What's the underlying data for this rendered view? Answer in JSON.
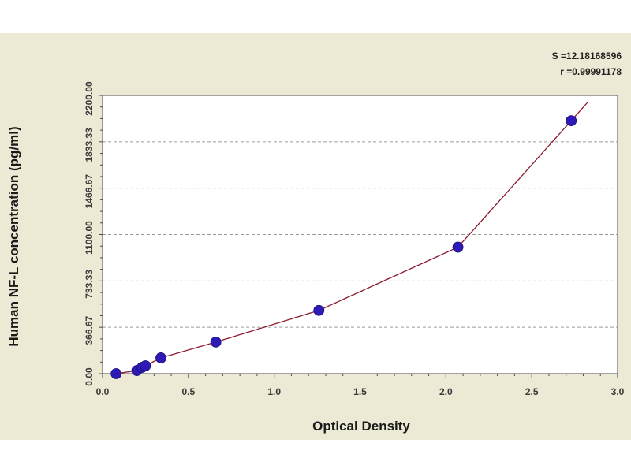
{
  "chart_data": {
    "type": "scatter",
    "xlabel": "Optical Density",
    "ylabel": "Human NF-L concentration (pg/ml)",
    "xlim": [
      0,
      3.0
    ],
    "ylim": [
      0,
      2200
    ],
    "x_ticks": [
      0.0,
      0.5,
      1.0,
      1.5,
      2.0,
      2.5,
      3.0
    ],
    "x_tick_labels": [
      "0.0",
      "0.5",
      "1.0",
      "1.5",
      "2.0",
      "2.5",
      "3.0"
    ],
    "y_ticks": [
      0,
      366.67,
      733.33,
      1100,
      1466.67,
      1833.33,
      2200
    ],
    "y_tick_labels": [
      "0.00",
      "366.67",
      "733.33",
      "1100.00",
      "1466.67",
      "1833.33",
      "2200.00"
    ],
    "grid": "horizontal dashed",
    "series": [
      {
        "x": [
          0.079,
          0.2,
          0.23,
          0.25,
          0.34,
          0.66,
          1.26,
          2.07,
          2.73
        ],
        "y": [
          0,
          25,
          50,
          62.5,
          125,
          250,
          500,
          1000,
          2000
        ],
        "marker_color": "#2e1ab5",
        "fit_curve_color": "#8b1a2e"
      }
    ],
    "fit_stats": [
      "S =12.18168596",
      "r =0.99991178"
    ]
  }
}
